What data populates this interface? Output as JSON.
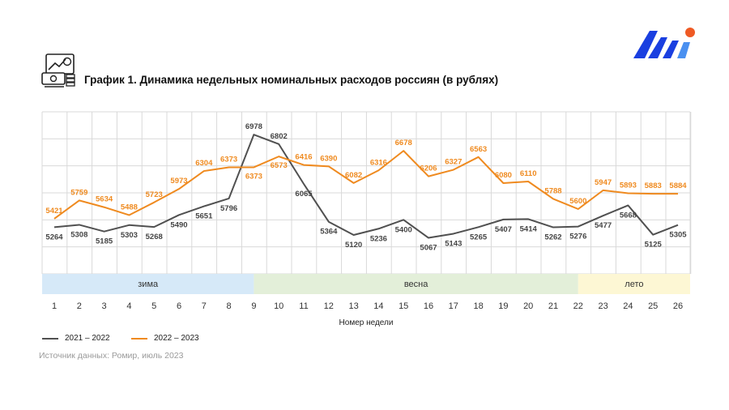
{
  "title": "График 1. Динамика недельных номинальных расходов россиян (в рублях)",
  "source": "Источник данных: Ромир, июль 2023",
  "colors": {
    "series1": "#505050",
    "series2": "#ef8a1f",
    "grid": "#d9d9d9",
    "season_winter": "#d6e9f8",
    "season_spring": "#e3efd9",
    "season_summer": "#fdf7d4"
  },
  "chart_data": {
    "type": "line",
    "xlabel": "Номер недели",
    "ylabel": "",
    "x": [
      1,
      2,
      3,
      4,
      5,
      6,
      7,
      8,
      9,
      10,
      11,
      12,
      13,
      14,
      15,
      16,
      17,
      18,
      19,
      20,
      21,
      22,
      23,
      24,
      25,
      26
    ],
    "ylim": [
      4400,
      7400
    ],
    "grid": true,
    "legend_position": "bottom-left",
    "series": [
      {
        "name": "2021 – 2022",
        "values": [
          5264,
          5308,
          5185,
          5303,
          5268,
          5490,
          5651,
          5796,
          6978,
          6802,
          6065,
          5364,
          5120,
          5236,
          5400,
          5067,
          5143,
          5265,
          5407,
          5414,
          5262,
          5276,
          5477,
          5668,
          5125,
          5305
        ]
      },
      {
        "name": "2022 – 2023",
        "values": [
          5421,
          5759,
          5634,
          5488,
          5723,
          5973,
          6304,
          6373,
          6373,
          6573,
          6416,
          6390,
          6082,
          6316,
          6678,
          6206,
          6327,
          6563,
          6080,
          6110,
          5788,
          5600,
          5947,
          5893,
          5883,
          5884
        ]
      }
    ],
    "seasons": [
      {
        "label": "зима",
        "from": 1,
        "to": 9
      },
      {
        "label": "весна",
        "from": 9,
        "to": 22
      },
      {
        "label": "лето",
        "from": 22,
        "to": 26
      }
    ]
  }
}
